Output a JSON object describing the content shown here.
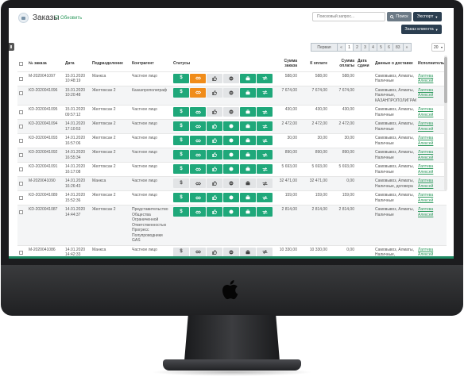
{
  "header": {
    "title": "Заказы",
    "refresh_label": "☑ Обновить",
    "search_placeholder": "Поисковый запрос...",
    "search_button": "Поиск",
    "export_button": "Экспорт",
    "order_client_button": "Заказ клиента"
  },
  "pagination": {
    "prev_label": "Первая",
    "back_label": "«",
    "pages": [
      "1",
      "2",
      "3",
      "4",
      "5",
      "6",
      "83",
      "»"
    ],
    "active_page": "1",
    "page_size": "20"
  },
  "table": {
    "columns": [
      "№ заказа",
      "Дата",
      "Подразделение",
      "Контрагент",
      "Статусы",
      "Сумма заказа",
      "К оплате",
      "Сумма оплаты",
      "Дата сдачи",
      "Данные о доставке",
      "Исполнитель"
    ],
    "rows": [
      {
        "num": "M-2020041097",
        "date": "15.01.2020 10:48:19",
        "dept": "Манкса",
        "client": "Частное лицо",
        "sum": "588,00",
        "topay": "588,00",
        "paid": "588,00",
        "due": "",
        "delivery": "Самовывоз, Алматы, Наличные",
        "exec": "Лаптева Алексей",
        "statuses": [
          "g",
          "o",
          "l",
          "l",
          "g",
          "g"
        ]
      },
      {
        "num": "KD-2020041096",
        "date": "15.01.2020 10:20:48",
        "dept": "Желтоксан 2",
        "client": "Казаэпрополиграф",
        "sum": "7 674,00",
        "topay": "7 674,00",
        "paid": "7 674,00",
        "due": "",
        "delivery": "Самовывоз, Алматы, Наличные, КАЗАНПРОПОЛИГРАФ",
        "exec": "Лаптева Алексей",
        "statuses": [
          "g",
          "o",
          "l",
          "l",
          "g",
          "g"
        ]
      },
      {
        "num": "KD-2020041095",
        "date": "15.01.2020 09:57:12",
        "dept": "Желтоксан 2",
        "client": "Частное лицо",
        "sum": "430,00",
        "topay": "430,00",
        "paid": "430,00",
        "due": "",
        "delivery": "Самовывоз, Алматы, Наличные",
        "exec": "Лаптева Алексей",
        "statuses": [
          "g",
          "g",
          "l",
          "l",
          "g",
          "g"
        ]
      },
      {
        "num": "KD-2020041094",
        "date": "14.01.2020 17:10:53",
        "dept": "Желтоксан 2",
        "client": "Частное лицо",
        "sum": "2 472,00",
        "topay": "2 472,00",
        "paid": "2 472,00",
        "due": "",
        "delivery": "Самовывоз, Алматы, Наличные",
        "exec": "Лаптева Алексей",
        "statuses": [
          "g",
          "g",
          "g",
          "g",
          "g",
          "g"
        ]
      },
      {
        "num": "KD-2020041093",
        "date": "14.01.2020 16:57:06",
        "dept": "Желтоксан 2",
        "client": "Частное лицо",
        "sum": "30,00",
        "topay": "30,00",
        "paid": "30,00",
        "due": "",
        "delivery": "Самовывоз, Алматы, Наличные",
        "exec": "Лаптева Алексей",
        "statuses": [
          "g",
          "g",
          "g",
          "g",
          "g",
          "g"
        ]
      },
      {
        "num": "KD-2020041092",
        "date": "14.01.2020 16:55:34",
        "dept": "Желтоксан 2",
        "client": "Частное лицо",
        "sum": "890,00",
        "topay": "890,00",
        "paid": "890,00",
        "due": "",
        "delivery": "Самовывоз, Алматы, Наличные",
        "exec": "Лаптева Алексей",
        "statuses": [
          "g",
          "g",
          "g",
          "g",
          "g",
          "g"
        ]
      },
      {
        "num": "KD-2020041091",
        "date": "14.01.2020 16:17:08",
        "dept": "Желтоксан 2",
        "client": "Частное лицо",
        "sum": "5 693,00",
        "topay": "5 693,00",
        "paid": "5 693,00",
        "due": "",
        "delivery": "Самовывоз, Алматы, Наличные",
        "exec": "Лаптева Алексей",
        "statuses": [
          "g",
          "g",
          "g",
          "g",
          "g",
          "g"
        ]
      },
      {
        "num": "M-2020041090",
        "date": "14.01.2020 16:26:43",
        "dept": "Манкса",
        "client": "Частное лицо",
        "sum": "32 471,00",
        "topay": "32 471,00",
        "paid": "0,00",
        "due": "",
        "delivery": "Самовывоз, Алматы, Наличные, договора",
        "exec": "Лаптева Алексей",
        "statuses": [
          "l",
          "l",
          "l",
          "l",
          "l",
          "l"
        ]
      },
      {
        "num": "KD-2020041089",
        "date": "14.01.2020 15:52:36",
        "dept": "Желтоксан 2",
        "client": "Частное лицо",
        "sum": "159,00",
        "topay": "159,00",
        "paid": "159,00",
        "due": "",
        "delivery": "Самовывоз, Алматы, Наличные",
        "exec": "Лаптева Алексей",
        "statuses": [
          "g",
          "g",
          "g",
          "g",
          "g",
          "g"
        ]
      },
      {
        "num": "KD-2020041087",
        "date": "14.01.2020 14:44:37",
        "dept": "Желтоксан 2",
        "client": "Представительство Общества Ограниченной Ответственностью Прогресс Полупроводники GAS",
        "sum": "2 814,00",
        "topay": "2 814,00",
        "paid": "2 814,00",
        "due": "",
        "delivery": "Самовывоз, Алматы, Наличные",
        "exec": "Лаптева Алексей",
        "statuses": [
          "g",
          "g",
          "g",
          "g",
          "g",
          "g"
        ]
      },
      {
        "num": "M-2020041086",
        "date": "14.01.2020 14:42:33",
        "dept": "Манкса",
        "client": "Частное лицо",
        "sum": "10 330,00",
        "topay": "10 330,00",
        "paid": "0,00",
        "due": "",
        "delivery": "Самовывоз, Алматы, Наличные, самовывоз",
        "exec": "Лаптева Алексей",
        "statuses": [
          "l",
          "l",
          "l",
          "l",
          "l",
          "l"
        ]
      }
    ]
  },
  "status_icons": [
    "dollar-icon",
    "handshake-icon",
    "thumb-up-icon",
    "minus-circle-icon",
    "briefcase-icon",
    "transfer-icon"
  ],
  "colors": {
    "green": "#1fa87a",
    "orange": "#f08c1a",
    "inactive": "#e2e4e6",
    "navy": "#2b3e50",
    "bezel": "#1c1c1e",
    "link": "#2e9a5e"
  }
}
